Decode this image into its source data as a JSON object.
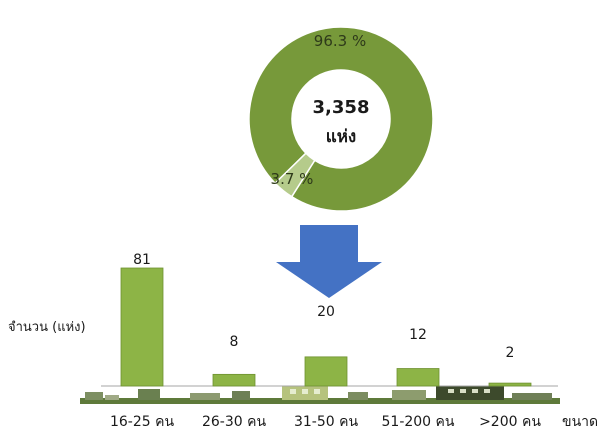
{
  "chart_data": [
    {
      "type": "pie",
      "variant": "donut",
      "center_text": {
        "value": "3,358",
        "unit": "แห่ง"
      },
      "slices": [
        {
          "label": "96.3 %",
          "value": 96.3,
          "color": "#77993a"
        },
        {
          "label": "3.7 %",
          "value": 3.7,
          "color": "#b5cb8b"
        }
      ]
    },
    {
      "type": "bar",
      "categories": [
        "16-25 คน",
        "26-30 คน",
        "31-50 คน",
        "51-200 คน",
        ">200 คน"
      ],
      "values": [
        81,
        8,
        20,
        12,
        2
      ],
      "ylabel": "จำนวน (แห่ง)",
      "xlabel": "ขนาด",
      "bar_color": "#8db446",
      "grid": false
    }
  ],
  "colors": {
    "donut_main": "#77993a",
    "donut_minor": "#b5cb8b",
    "arrow": "#4472c4",
    "bar": "#8db446",
    "bar_edge": "#6f9230"
  }
}
